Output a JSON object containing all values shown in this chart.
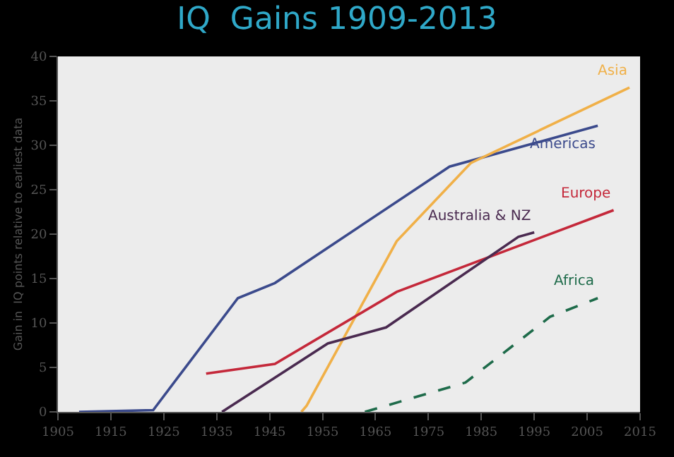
{
  "chart_data": {
    "type": "line",
    "title": "IQ  Gains 1909-2013",
    "ylabel": "Gain in  IQ points relative to earliest data",
    "xlim": [
      1905,
      2015
    ],
    "xticks": [
      1905,
      1915,
      1925,
      1935,
      1945,
      1955,
      1965,
      1975,
      1985,
      1995,
      2005,
      2015
    ],
    "ylim": [
      0,
      40
    ],
    "yticks": [
      0,
      5,
      10,
      15,
      20,
      25,
      30,
      35,
      40
    ],
    "grid": false,
    "legend": false,
    "marker": "none",
    "series": [
      {
        "name": "Americas",
        "color": "#3b4a8c",
        "x": [
          1909,
          1923,
          1939,
          1946,
          1979,
          2007
        ],
        "values": [
          0,
          0.2,
          12.8,
          14.5,
          27.6,
          32.2
        ]
      },
      {
        "name": "Asia",
        "color": "#f0b048",
        "x": [
          1951,
          1952,
          1969,
          1983,
          2013
        ],
        "values": [
          0,
          0.7,
          19.2,
          28,
          36.5
        ]
      },
      {
        "name": "Europe",
        "color": "#c4283a",
        "x": [
          1933,
          1946,
          1969,
          2010
        ],
        "values": [
          4.3,
          5.4,
          13.5,
          22.7
        ]
      },
      {
        "name": "Australia & NZ",
        "color": "#4a2a50",
        "x": [
          1936,
          1956,
          1967,
          1992,
          1995
        ],
        "values": [
          0,
          7.7,
          9.5,
          19.7,
          20.2
        ]
      },
      {
        "name": "Africa",
        "color": "#1e6b4a",
        "line_style": "dashed",
        "x": [
          1963,
          1982,
          1998,
          2007
        ],
        "values": [
          0,
          3.3,
          10.7,
          12.8
        ]
      }
    ]
  }
}
